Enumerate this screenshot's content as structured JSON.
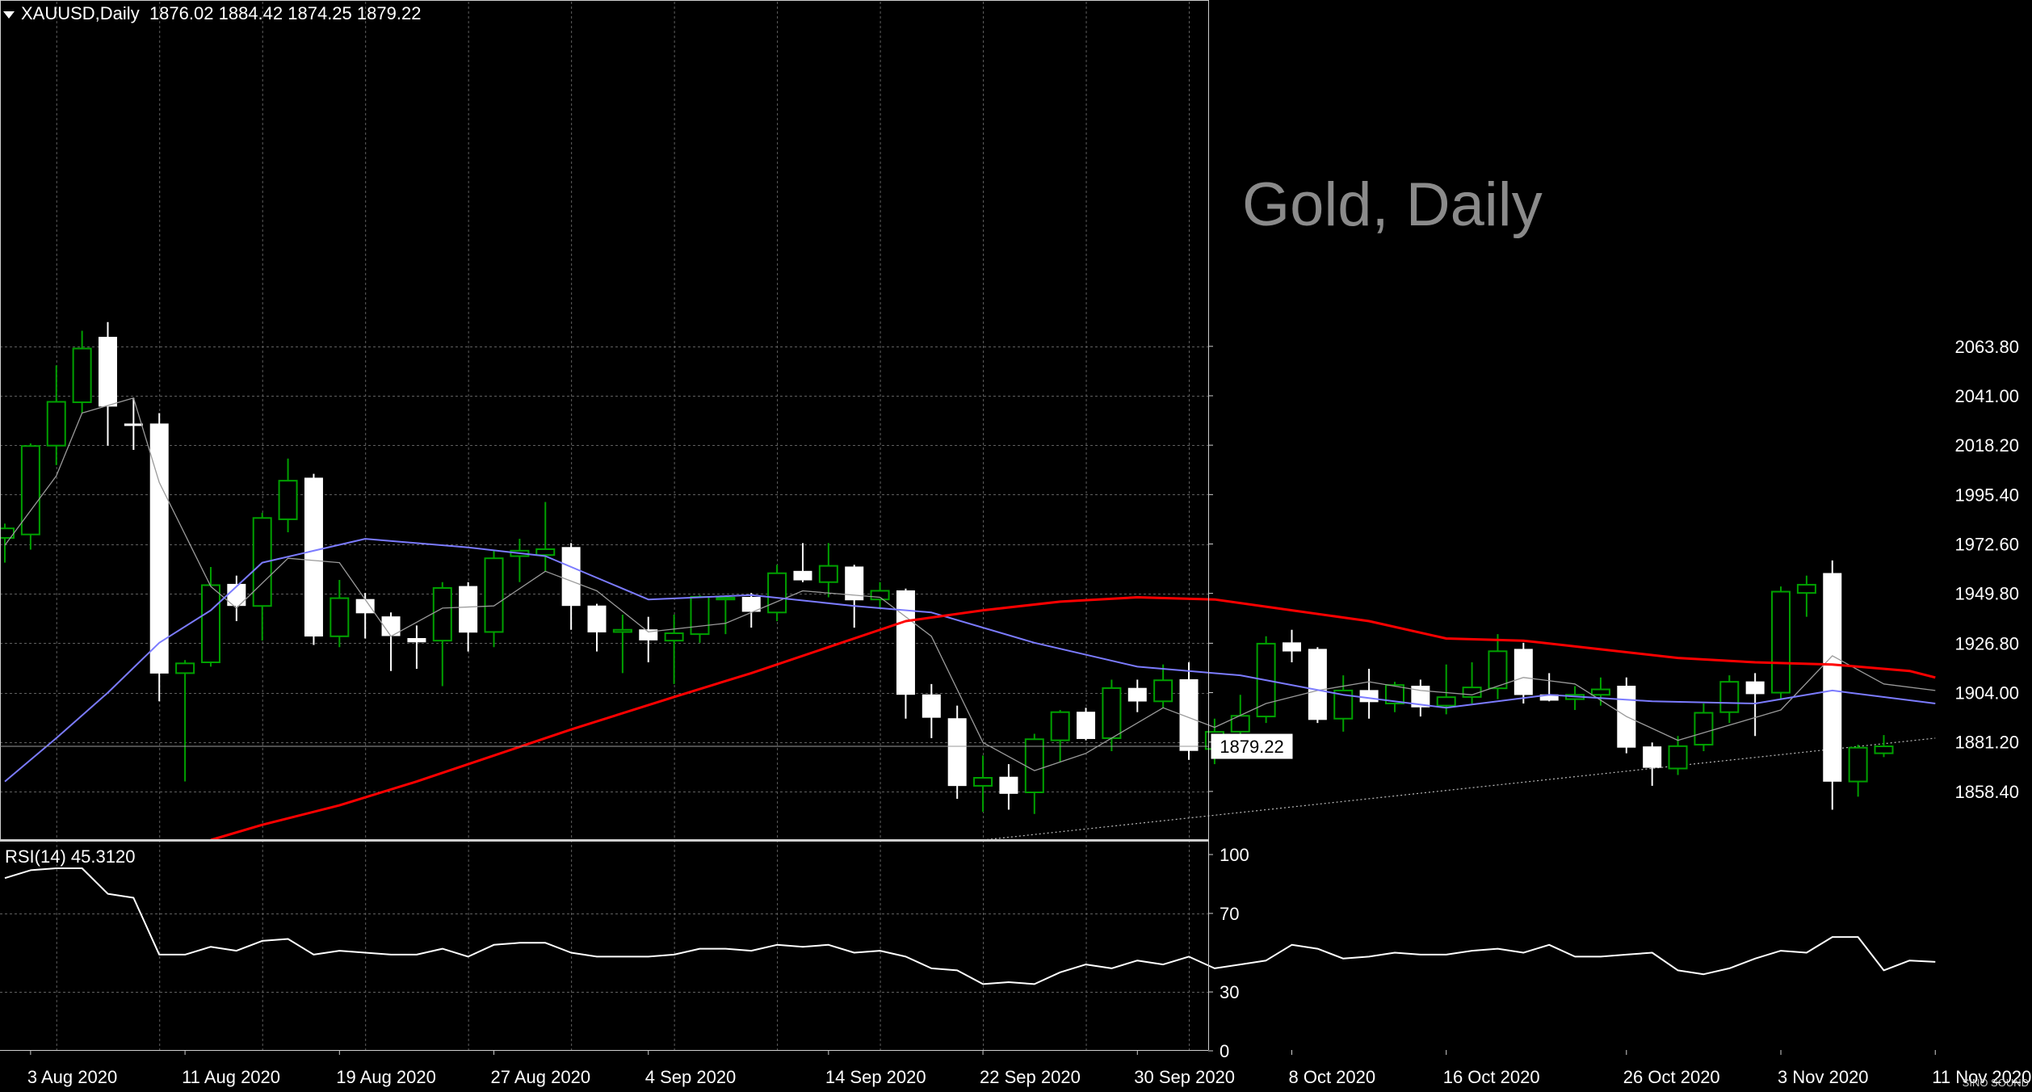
{
  "header": {
    "symbol": "XAUUSD,Daily",
    "open": "1876.02",
    "high": "1884.42",
    "low": "1874.25",
    "close": "1879.22"
  },
  "watermark": "Gold, Daily",
  "logo_text": "SINO SOUND",
  "colors": {
    "background": "#000000",
    "grid": "#5f5f5f",
    "bull_candle": "#00a000",
    "bear_candle": "#ffffff",
    "ma_red": "#ff0000",
    "ma_blue": "#7b7bff",
    "ma_gray": "#9a9a9a",
    "rsi_line": "#ffffff"
  },
  "chart_data": [
    {
      "type": "candlestick",
      "symbol": "XAUUSD",
      "timeframe": "Daily",
      "ylim": [
        1836.0,
        2080.0
      ],
      "y_ticks": [
        "2063.80",
        "2041.00",
        "2018.20",
        "1995.40",
        "1972.60",
        "1949.80",
        "1926.80",
        "1904.00",
        "1881.20",
        "1858.40"
      ],
      "current_price_label": "1879.22",
      "x_tick_labels": [
        "3 Aug 2020",
        "11 Aug 2020",
        "19 Aug 2020",
        "27 Aug 2020",
        "4 Sep 2020",
        "14 Sep 2020",
        "22 Sep 2020",
        "30 Sep 2020",
        "8 Oct 2020",
        "16 Oct 2020",
        "26 Oct 2020",
        "3 Nov 2020",
        "11 Nov 2020"
      ],
      "x_tick_bar_index": [
        1,
        7,
        13,
        19,
        25,
        32,
        38,
        44,
        50,
        56,
        63,
        69,
        75
      ],
      "candles": [
        {
          "o": 1975.4,
          "h": 1982.0,
          "l": 1964.0,
          "c": 1979.8
        },
        {
          "o": 1977.0,
          "h": 2019.0,
          "l": 1970.0,
          "c": 2017.8
        },
        {
          "o": 2018.0,
          "h": 2055.0,
          "l": 2009.0,
          "c": 2038.2
        },
        {
          "o": 2038.0,
          "h": 2071.0,
          "l": 2033.0,
          "c": 2062.8
        },
        {
          "o": 2068.0,
          "h": 2075.0,
          "l": 2018.0,
          "c": 2036.2
        },
        {
          "o": 2028.0,
          "h": 2040.0,
          "l": 2016.0,
          "c": 2027.8
        },
        {
          "o": 2028.0,
          "h": 2033.0,
          "l": 1900.0,
          "c": 1913.0
        },
        {
          "o": 1913.0,
          "h": 1919.0,
          "l": 1863.0,
          "c": 1917.5
        },
        {
          "o": 1918.0,
          "h": 1962.0,
          "l": 1916.0,
          "c": 1953.6
        },
        {
          "o": 1954.0,
          "h": 1958.0,
          "l": 1937.0,
          "c": 1944.2
        },
        {
          "o": 1944.0,
          "h": 1987.0,
          "l": 1928.0,
          "c": 1984.6
        },
        {
          "o": 1984.0,
          "h": 2012.0,
          "l": 1978.0,
          "c": 2001.8
        },
        {
          "o": 2003.0,
          "h": 2005.0,
          "l": 1926.0,
          "c": 1930.1
        },
        {
          "o": 1930.0,
          "h": 1956.0,
          "l": 1925.0,
          "c": 1947.6
        },
        {
          "o": 1947.0,
          "h": 1950.0,
          "l": 1929.0,
          "c": 1940.8
        },
        {
          "o": 1939.0,
          "h": 1941.0,
          "l": 1914.0,
          "c": 1930.3
        },
        {
          "o": 1929.0,
          "h": 1935.0,
          "l": 1915.0,
          "c": 1927.4
        },
        {
          "o": 1928.0,
          "h": 1955.0,
          "l": 1907.0,
          "c": 1952.3
        },
        {
          "o": 1953.0,
          "h": 1955.0,
          "l": 1923.0,
          "c": 1931.9
        },
        {
          "o": 1932.0,
          "h": 1970.0,
          "l": 1925.0,
          "c": 1966.0
        },
        {
          "o": 1967.0,
          "h": 1975.0,
          "l": 1955.0,
          "c": 1969.5
        },
        {
          "o": 1967.5,
          "h": 1992.0,
          "l": 1960.0,
          "c": 1970.2
        },
        {
          "o": 1971.0,
          "h": 1973.0,
          "l": 1933.0,
          "c": 1944.2
        },
        {
          "o": 1944.0,
          "h": 1945.0,
          "l": 1923.0,
          "c": 1932.0
        },
        {
          "o": 1932.0,
          "h": 1940.0,
          "l": 1913.0,
          "c": 1933.0
        },
        {
          "o": 1933.0,
          "h": 1939.0,
          "l": 1918.0,
          "c": 1928.3
        },
        {
          "o": 1928.0,
          "h": 1940.0,
          "l": 1908.0,
          "c": 1931.4
        },
        {
          "o": 1931.0,
          "h": 1949.0,
          "l": 1927.0,
          "c": 1948.2
        },
        {
          "o": 1947.0,
          "h": 1948.0,
          "l": 1931.0,
          "c": 1947.8
        },
        {
          "o": 1948.0,
          "h": 1950.0,
          "l": 1934.0,
          "c": 1941.5
        },
        {
          "o": 1941.0,
          "h": 1963.0,
          "l": 1937.0,
          "c": 1959.1
        },
        {
          "o": 1960.0,
          "h": 1973.0,
          "l": 1955.0,
          "c": 1956.0
        },
        {
          "o": 1955.0,
          "h": 1973.0,
          "l": 1948.0,
          "c": 1962.5
        },
        {
          "o": 1962.0,
          "h": 1963.0,
          "l": 1934.0,
          "c": 1946.8
        },
        {
          "o": 1947.0,
          "h": 1955.0,
          "l": 1943.0,
          "c": 1951.0
        },
        {
          "o": 1951.0,
          "h": 1952.0,
          "l": 1892.0,
          "c": 1903.2
        },
        {
          "o": 1903.0,
          "h": 1908.0,
          "l": 1883.0,
          "c": 1892.6
        },
        {
          "o": 1892.0,
          "h": 1898.0,
          "l": 1855.0,
          "c": 1861.1
        },
        {
          "o": 1861.0,
          "h": 1875.0,
          "l": 1849.0,
          "c": 1864.7
        },
        {
          "o": 1865.0,
          "h": 1871.0,
          "l": 1850.0,
          "c": 1857.5
        },
        {
          "o": 1858.0,
          "h": 1885.0,
          "l": 1848.0,
          "c": 1882.5
        },
        {
          "o": 1882.0,
          "h": 1896.0,
          "l": 1872.0,
          "c": 1895.0
        },
        {
          "o": 1895.0,
          "h": 1897.0,
          "l": 1882.0,
          "c": 1882.8
        },
        {
          "o": 1883.0,
          "h": 1910.0,
          "l": 1877.0,
          "c": 1906.1
        },
        {
          "o": 1906.0,
          "h": 1910.0,
          "l": 1895.0,
          "c": 1900.1
        },
        {
          "o": 1900.0,
          "h": 1917.0,
          "l": 1897.0,
          "c": 1909.7
        },
        {
          "o": 1910.0,
          "h": 1918.0,
          "l": 1873.0,
          "c": 1877.3
        },
        {
          "o": 1878.0,
          "h": 1892.0,
          "l": 1871.0,
          "c": 1885.9
        },
        {
          "o": 1886.0,
          "h": 1903.0,
          "l": 1880.0,
          "c": 1893.3
        },
        {
          "o": 1893.0,
          "h": 1930.0,
          "l": 1890.0,
          "c": 1926.6
        },
        {
          "o": 1927.0,
          "h": 1933.0,
          "l": 1918.0,
          "c": 1923.2
        },
        {
          "o": 1924.0,
          "h": 1925.0,
          "l": 1890.0,
          "c": 1891.6
        },
        {
          "o": 1892.0,
          "h": 1912.0,
          "l": 1886.0,
          "c": 1905.0
        },
        {
          "o": 1905.0,
          "h": 1915.0,
          "l": 1892.0,
          "c": 1899.8
        },
        {
          "o": 1899.0,
          "h": 1909.0,
          "l": 1895.0,
          "c": 1907.5
        },
        {
          "o": 1907.0,
          "h": 1910.0,
          "l": 1893.0,
          "c": 1897.4
        },
        {
          "o": 1898.0,
          "h": 1917.0,
          "l": 1894.0,
          "c": 1901.9
        },
        {
          "o": 1902.0,
          "h": 1918.0,
          "l": 1899.0,
          "c": 1906.4
        },
        {
          "o": 1906.0,
          "h": 1931.0,
          "l": 1901.0,
          "c": 1923.1
        },
        {
          "o": 1924.0,
          "h": 1927.0,
          "l": 1899.0,
          "c": 1903.1
        },
        {
          "o": 1903.0,
          "h": 1913.0,
          "l": 1900.0,
          "c": 1900.5
        },
        {
          "o": 1901.0,
          "h": 1907.0,
          "l": 1896.0,
          "c": 1903.0
        },
        {
          "o": 1903.0,
          "h": 1911.0,
          "l": 1898.0,
          "c": 1905.5
        },
        {
          "o": 1907.0,
          "h": 1911.0,
          "l": 1876.0,
          "c": 1878.8
        },
        {
          "o": 1879.0,
          "h": 1881.0,
          "l": 1861.0,
          "c": 1869.5
        },
        {
          "o": 1869.0,
          "h": 1884.0,
          "l": 1866.0,
          "c": 1879.3
        },
        {
          "o": 1880.0,
          "h": 1899.0,
          "l": 1877.0,
          "c": 1894.7
        },
        {
          "o": 1895.0,
          "h": 1912.0,
          "l": 1890.0,
          "c": 1909.0
        },
        {
          "o": 1909.0,
          "h": 1913.0,
          "l": 1884.0,
          "c": 1903.5
        },
        {
          "o": 1904.0,
          "h": 1953.0,
          "l": 1901.0,
          "c": 1950.6
        },
        {
          "o": 1950.0,
          "h": 1958.0,
          "l": 1939.0,
          "c": 1953.8
        },
        {
          "o": 1959.0,
          "h": 1965.0,
          "l": 1850.0,
          "c": 1863.1
        },
        {
          "o": 1863.0,
          "h": 1880.0,
          "l": 1856.0,
          "c": 1878.6
        },
        {
          "o": 1876.02,
          "h": 1884.42,
          "l": 1874.25,
          "c": 1879.22
        }
      ],
      "ma_red": [
        [
          8,
          1836
        ],
        [
          10,
          1843
        ],
        [
          13,
          1852
        ],
        [
          16,
          1863
        ],
        [
          19,
          1875
        ],
        [
          22,
          1887
        ],
        [
          26,
          1902
        ],
        [
          29,
          1913
        ],
        [
          32,
          1925
        ],
        [
          35,
          1937
        ],
        [
          38,
          1942
        ],
        [
          41,
          1946
        ],
        [
          44,
          1948
        ],
        [
          47,
          1947
        ],
        [
          50,
          1942
        ],
        [
          53,
          1937
        ],
        [
          56,
          1929
        ],
        [
          59,
          1928
        ],
        [
          62,
          1924
        ],
        [
          65,
          1920
        ],
        [
          68,
          1918
        ],
        [
          71,
          1917
        ],
        [
          74,
          1914
        ],
        [
          75,
          1911
        ]
      ],
      "ma_blue": [
        [
          0,
          1863
        ],
        [
          2,
          1883
        ],
        [
          4,
          1904
        ],
        [
          6,
          1927
        ],
        [
          8,
          1942
        ],
        [
          10,
          1964
        ],
        [
          14,
          1975
        ],
        [
          18,
          1971
        ],
        [
          21,
          1967
        ],
        [
          25,
          1947
        ],
        [
          29,
          1949
        ],
        [
          33,
          1944
        ],
        [
          36,
          1941
        ],
        [
          40,
          1927
        ],
        [
          44,
          1916
        ],
        [
          48,
          1912
        ],
        [
          52,
          1903
        ],
        [
          56,
          1897
        ],
        [
          60,
          1903
        ],
        [
          64,
          1900
        ],
        [
          68,
          1899
        ],
        [
          71,
          1905
        ],
        [
          75,
          1899
        ]
      ],
      "ma_gray": [
        [
          0,
          1972
        ],
        [
          2,
          2004
        ],
        [
          3,
          2033
        ],
        [
          5,
          2040
        ],
        [
          6,
          2001
        ],
        [
          8,
          1953
        ],
        [
          9,
          1943
        ],
        [
          11,
          1966
        ],
        [
          13,
          1964
        ],
        [
          15,
          1930
        ],
        [
          17,
          1943
        ],
        [
          19,
          1944
        ],
        [
          21,
          1960
        ],
        [
          23,
          1951
        ],
        [
          25,
          1932
        ],
        [
          28,
          1936
        ],
        [
          31,
          1951
        ],
        [
          34,
          1948
        ],
        [
          36,
          1930
        ],
        [
          38,
          1881
        ],
        [
          40,
          1868
        ],
        [
          42,
          1876
        ],
        [
          45,
          1897
        ],
        [
          47,
          1888
        ],
        [
          49,
          1899
        ],
        [
          51,
          1905
        ],
        [
          53,
          1909
        ],
        [
          55,
          1905
        ],
        [
          57,
          1903
        ],
        [
          59,
          1911
        ],
        [
          61,
          1908
        ],
        [
          63,
          1893
        ],
        [
          65,
          1882
        ],
        [
          67,
          1889
        ],
        [
          69,
          1896
        ],
        [
          71,
          1921
        ],
        [
          73,
          1908
        ],
        [
          75,
          1905
        ]
      ],
      "trendline": [
        [
          38,
          1836
        ],
        [
          75,
          1883
        ]
      ]
    },
    {
      "type": "line",
      "name": "RSI(14)",
      "label": "RSI(14) 45.3120",
      "ylim": [
        0,
        100
      ],
      "y_ticks": [
        "100",
        "70",
        "30",
        "0"
      ],
      "values": [
        88,
        92,
        93,
        93,
        80,
        78,
        49,
        49,
        53,
        51,
        56,
        57,
        49,
        51,
        50,
        49,
        49,
        52,
        48,
        54,
        55,
        55,
        50,
        48,
        48,
        48,
        49,
        52,
        52,
        51,
        54,
        53,
        54,
        50,
        51,
        48,
        42,
        41,
        34,
        35,
        34,
        40,
        44,
        42,
        46,
        44,
        48,
        42,
        44,
        46,
        54,
        52,
        47,
        48,
        50,
        49,
        49,
        51,
        52,
        50,
        54,
        48,
        48,
        49,
        50,
        41,
        39,
        42,
        47,
        51,
        50,
        58,
        58,
        41,
        46,
        45.312
      ]
    }
  ]
}
